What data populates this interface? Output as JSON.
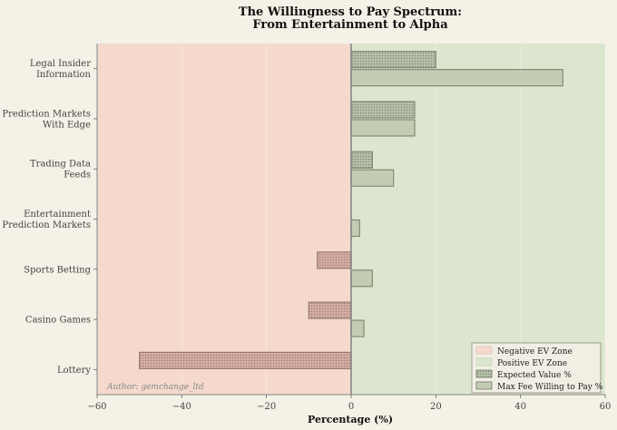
{
  "chart_data": {
    "type": "bar",
    "orientation": "horizontal",
    "title_line1": "The Willingness to Pay Spectrum:",
    "title_line2": "From Entertainment to Alpha",
    "xlabel": "Percentage (%)",
    "ylabel": "",
    "xlim": [
      -60,
      60
    ],
    "xticks": [
      -60,
      -40,
      -20,
      0,
      20,
      40,
      60
    ],
    "tick_labels": [
      "−60",
      "−40",
      "−20",
      "0",
      "20",
      "40",
      "60"
    ],
    "grid": true,
    "legend_position": "bottom-right",
    "categories": [
      [
        "Legal Insider",
        "Information"
      ],
      [
        "Prediction Markets",
        "With Edge"
      ],
      [
        "Trading Data",
        "Feeds"
      ],
      [
        "Entertainment",
        "Prediction Markets"
      ],
      [
        "Sports Betting"
      ],
      [
        "Casino Games"
      ],
      [
        "Lottery"
      ]
    ],
    "series": [
      {
        "name": "Expected Value %",
        "values": [
          20,
          15,
          5,
          0,
          -8,
          -10,
          -50
        ]
      },
      {
        "name": "Max Fee Willing to Pay %",
        "values": [
          50,
          15,
          10,
          2,
          5,
          3,
          0
        ]
      }
    ],
    "zones": [
      {
        "name": "Negative EV Zone",
        "range": [
          -60,
          0
        ]
      },
      {
        "name": "Positive EV Zone",
        "range": [
          0,
          60
        ]
      }
    ],
    "annotation": "Author: gemchange_ltd",
    "colors": {
      "background": "#f4f1e6",
      "negative_zone": "#f5d9cd",
      "positive_zone": "#dce6cf",
      "ev_bar_positive": "#b3bda4",
      "ev_bar_negative": "#d4aaa0",
      "fee_bar": "#c4ccb3",
      "bar_stroke": "#7f8a75",
      "axis": "#888888",
      "grid": "#e6e1d6"
    }
  }
}
